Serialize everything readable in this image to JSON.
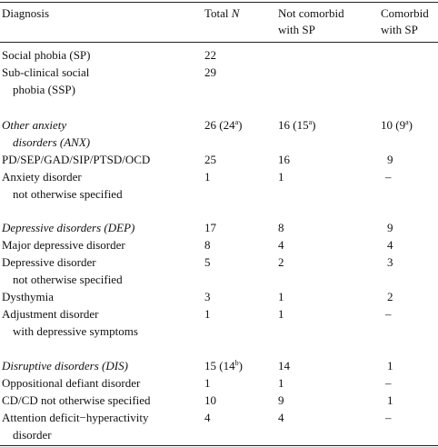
{
  "headers": {
    "diagnosis": "Diagnosis",
    "total_prefix": "Total",
    "total_n": "N",
    "not_comorbid_line1": "Not comorbid",
    "not_comorbid_line2": "with SP",
    "comorbid_line1": "Comorbid",
    "comorbid_line2": "with SP"
  },
  "rows": {
    "sp": {
      "label": "Social phobia (SP)",
      "total": "22"
    },
    "ssp": {
      "label1": "Sub-clinical social",
      "label2": "phobia (SSP)",
      "total": "29"
    },
    "anx": {
      "label1": "Other anxiety",
      "label2": "disorders (ANX)",
      "total": "26 (24",
      "total_sup": "a",
      "total_close": ")",
      "not": "16 (15",
      "not_sup": "a",
      "not_close": ")",
      "com": "10 (9",
      "com_sup": "a",
      "com_close": ")"
    },
    "pd": {
      "label": "PD/SEP/GAD/SIP/PTSD/OCD",
      "total": "25",
      "not": "16",
      "com": "9"
    },
    "anos": {
      "label1": "Anxiety disorder",
      "label2": "not otherwise specified",
      "total": "1",
      "not": "1",
      "com": "–"
    },
    "dep": {
      "label": "Depressive disorders (DEP)",
      "total": "17",
      "not": "8",
      "com": "9"
    },
    "mdd": {
      "label": "Major depressive disorder",
      "total": "8",
      "not": "4",
      "com": "4"
    },
    "dnos": {
      "label1": "Depressive disorder",
      "label2": "not otherwise specified",
      "total": "5",
      "not": "2",
      "com": "3"
    },
    "dys": {
      "label": "Dysthymia",
      "total": "3",
      "not": "1",
      "com": "2"
    },
    "adj": {
      "label1": "Adjustment disorder",
      "label2": "with depressive symptoms",
      "total": "1",
      "not": "1",
      "com": "–"
    },
    "dis": {
      "label": "Disruptive disorders (DIS)",
      "total": "15 (14",
      "total_sup": "b",
      "total_close": ")",
      "not": "14",
      "com": "1"
    },
    "odd": {
      "label": "Oppositional defiant disorder",
      "total": "1",
      "not": "1",
      "com": "–"
    },
    "cd": {
      "label": "CD/CD not otherwise specified",
      "total": "10",
      "not": "9",
      "com": "1"
    },
    "adhd": {
      "label1": "Attention deficit−hyperactivity",
      "label2": "disorder",
      "total": "4",
      "not": "4",
      "com": "–"
    }
  }
}
